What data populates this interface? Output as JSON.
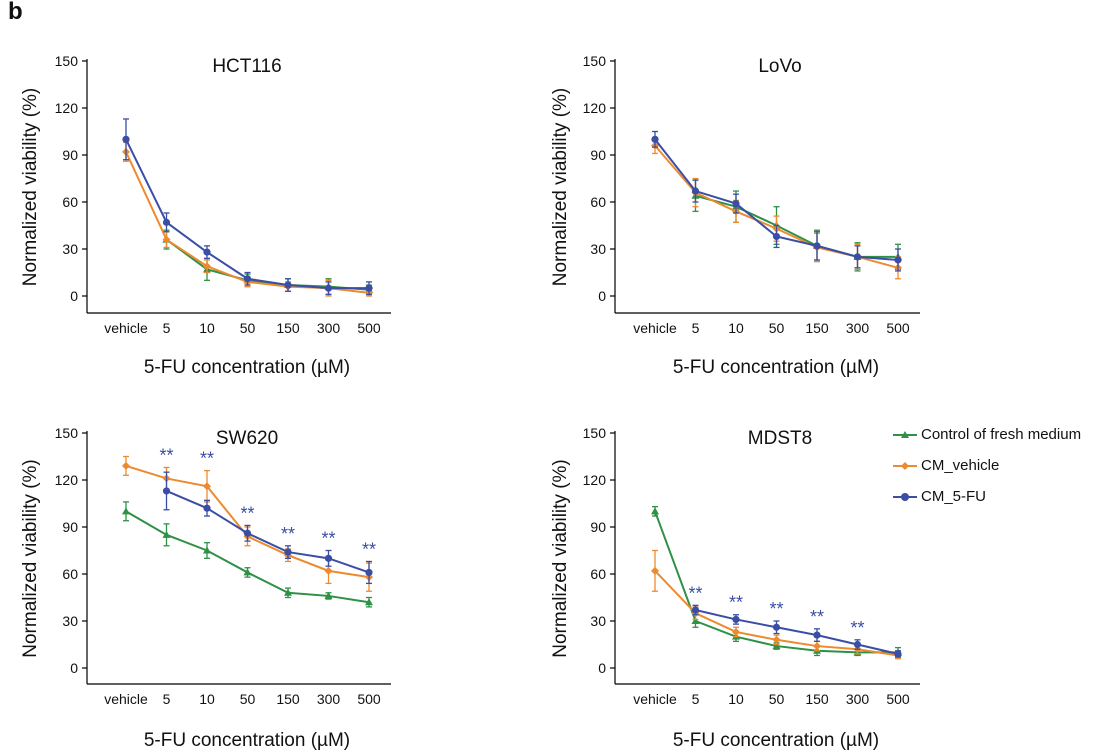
{
  "panel_label": "b",
  "colors": {
    "control": "#2e9146",
    "cm_vehicle": "#ee8a2e",
    "cm_5fu": "#3a4ea5",
    "stars": "#3a4ea5",
    "axis": "#000000"
  },
  "legend": {
    "entries": [
      {
        "label": "Control of fresh medium",
        "color": "#2e9146",
        "marker": "triangle"
      },
      {
        "label": "CM_vehicle",
        "color": "#ee8a2e",
        "marker": "diamond"
      },
      {
        "label": "CM_5-FU",
        "color": "#3a4ea5",
        "marker": "circle"
      }
    ]
  },
  "chart_data": [
    {
      "type": "line",
      "title": "HCT116",
      "xlabel": "5-FU concentration (µM)",
      "ylabel": "Normalized viability (%)",
      "categories": [
        "vehicle",
        "5",
        "10",
        "50",
        "150",
        "300",
        "500"
      ],
      "yticks": [
        0,
        30,
        60,
        90,
        120,
        150
      ],
      "ylim": [
        0,
        150
      ],
      "series": [
        {
          "name": "Control of fresh medium",
          "values": [
            null,
            36,
            17,
            10,
            7,
            6,
            4
          ],
          "errors": [
            null,
            6,
            7,
            4,
            4,
            5,
            3
          ]
        },
        {
          "name": "CM_vehicle",
          "values": [
            92,
            36,
            19,
            9,
            6,
            5,
            2
          ],
          "errors": [
            6,
            5,
            4,
            3,
            3,
            5,
            2
          ]
        },
        {
          "name": "CM_5-FU",
          "values": [
            100,
            47,
            28,
            11,
            7,
            5,
            5
          ],
          "errors": [
            13,
            6,
            4,
            4,
            4,
            4,
            4
          ]
        }
      ],
      "significance": [
        "",
        "",
        "",
        "",
        "",
        "",
        ""
      ]
    },
    {
      "type": "line",
      "title": "LoVo",
      "xlabel": "5-FU concentration (µM)",
      "ylabel": "Normalized viability (%)",
      "categories": [
        "vehicle",
        "5",
        "10",
        "50",
        "150",
        "300",
        "500"
      ],
      "yticks": [
        0,
        30,
        60,
        90,
        120,
        150
      ],
      "ylim": [
        0,
        150
      ],
      "series": [
        {
          "name": "Control of fresh medium",
          "values": [
            null,
            64,
            57,
            45,
            32,
            25,
            25
          ],
          "errors": [
            null,
            10,
            10,
            12,
            10,
            9,
            8
          ]
        },
        {
          "name": "CM_vehicle",
          "values": [
            96,
            66,
            54,
            43,
            31,
            25,
            18
          ],
          "errors": [
            5,
            9,
            7,
            8,
            9,
            8,
            7
          ]
        },
        {
          "name": "CM_5-FU",
          "values": [
            100,
            67,
            59,
            38,
            32,
            25,
            23
          ],
          "errors": [
            5,
            7,
            6,
            7,
            9,
            7,
            7
          ]
        }
      ],
      "significance": [
        "",
        "",
        "",
        "",
        "",
        "",
        ""
      ]
    },
    {
      "type": "line",
      "title": "SW620",
      "xlabel": "5-FU concentration (µM)",
      "ylabel": "Normalized viability (%)",
      "categories": [
        "vehicle",
        "5",
        "10",
        "50",
        "150",
        "300",
        "500"
      ],
      "yticks": [
        0,
        30,
        60,
        90,
        120,
        150
      ],
      "ylim": [
        0,
        150
      ],
      "series": [
        {
          "name": "Control of fresh medium",
          "values": [
            100,
            85,
            75,
            61,
            48,
            46,
            42
          ],
          "errors": [
            6,
            7,
            5,
            3,
            3,
            2,
            3
          ]
        },
        {
          "name": "CM_vehicle",
          "values": [
            129,
            121,
            116,
            84,
            72,
            62,
            58
          ],
          "errors": [
            6,
            7,
            10,
            6,
            4,
            8,
            9
          ]
        },
        {
          "name": "CM_5-FU",
          "values": [
            null,
            113,
            102,
            86,
            74,
            70,
            61
          ],
          "errors": [
            null,
            12,
            5,
            5,
            4,
            5,
            7
          ]
        }
      ],
      "significance": [
        "",
        "**",
        "**",
        "**",
        "**",
        "**",
        "**"
      ]
    },
    {
      "type": "line",
      "title": "MDST8",
      "xlabel": "5-FU concentration (µM)",
      "ylabel": "Normalized viability (%)",
      "categories": [
        "vehicle",
        "5",
        "10",
        "50",
        "150",
        "300",
        "500"
      ],
      "yticks": [
        0,
        30,
        60,
        90,
        120,
        150
      ],
      "ylim": [
        0,
        150
      ],
      "series": [
        {
          "name": "Control of fresh medium",
          "values": [
            100,
            30,
            20,
            14,
            11,
            10,
            10
          ],
          "errors": [
            3,
            4,
            3,
            2,
            3,
            2,
            3
          ]
        },
        {
          "name": "CM_vehicle",
          "values": [
            62,
            35,
            23,
            18,
            14,
            12,
            8
          ],
          "errors": [
            13,
            4,
            3,
            3,
            3,
            3,
            2
          ]
        },
        {
          "name": "CM_5-FU",
          "values": [
            null,
            37,
            31,
            26,
            21,
            15,
            9
          ],
          "errors": [
            null,
            3,
            3,
            4,
            4,
            3,
            2
          ]
        }
      ],
      "significance": [
        "",
        "**",
        "**",
        "**",
        "**",
        "**",
        ""
      ]
    }
  ]
}
